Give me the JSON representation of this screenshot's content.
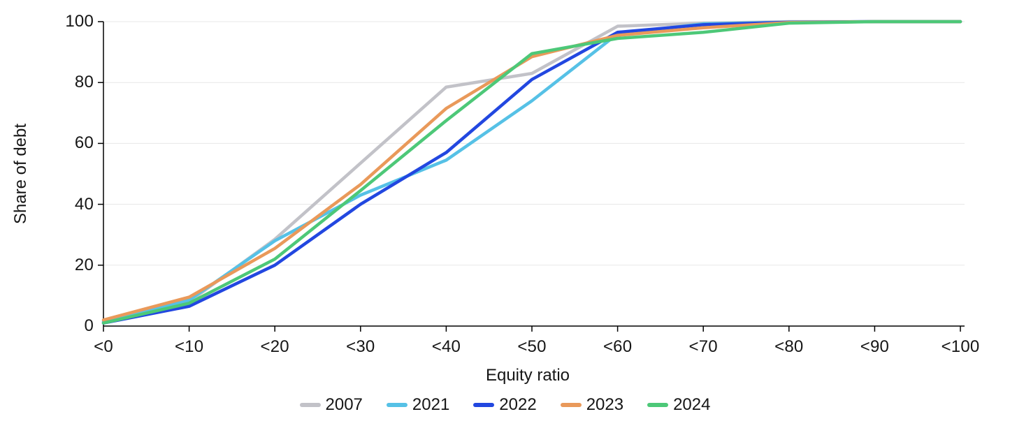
{
  "chart_data": {
    "type": "line",
    "title": "",
    "xlabel": "Equity ratio",
    "ylabel": "Share of debt",
    "categories": [
      "<0",
      "<10",
      "<20",
      "<30",
      "<40",
      "<50",
      "<60",
      "<70",
      "<80",
      "<90",
      "<100"
    ],
    "yticks": [
      0,
      20,
      40,
      60,
      80,
      100
    ],
    "ylim": [
      0,
      100
    ],
    "grid": "horizontal",
    "legend_position": "bottom",
    "axis_color": "#000000",
    "gridline_color": "#e7e7e7",
    "series": [
      {
        "name": "2007",
        "color": "#c2c2c8",
        "values": [
          1,
          8,
          28.5,
          53.5,
          78.5,
          83,
          98.5,
          99.5,
          100,
          100,
          100
        ]
      },
      {
        "name": "2021",
        "color": "#56c1e6",
        "values": [
          1.5,
          8.5,
          28,
          43,
          54.5,
          74,
          96,
          99.3,
          99.8,
          100,
          100
        ]
      },
      {
        "name": "2022",
        "color": "#2247e0",
        "values": [
          1,
          6.5,
          20,
          40,
          57,
          81,
          96.5,
          99,
          99.8,
          100,
          100
        ]
      },
      {
        "name": "2023",
        "color": "#e9995a",
        "values": [
          2,
          9.5,
          25.5,
          46.5,
          71.5,
          88.5,
          95.5,
          98,
          99.7,
          100,
          100
        ]
      },
      {
        "name": "2024",
        "color": "#4dc878",
        "values": [
          1,
          7.5,
          22,
          44.5,
          67.5,
          89.5,
          94.5,
          96.5,
          99.5,
          100,
          100
        ]
      }
    ]
  }
}
